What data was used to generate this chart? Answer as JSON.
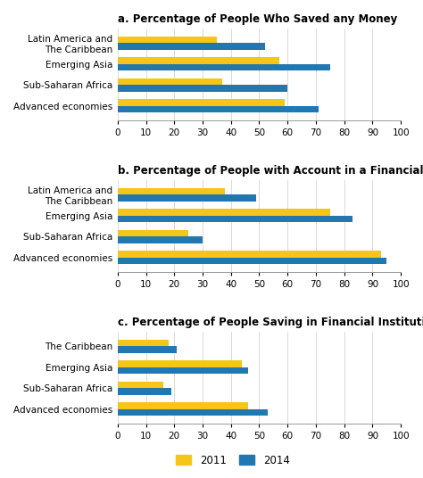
{
  "panel_a": {
    "title": "a. Percentage of People Who Saved any Money",
    "categories": [
      "Advanced economies",
      "Sub-Saharan Africa",
      "Emerging Asia",
      "Latin America and\nThe Caribbean"
    ],
    "values_2011": [
      59,
      37,
      57,
      35
    ],
    "values_2014": [
      71,
      60,
      75,
      52
    ]
  },
  "panel_b": {
    "title": "b. Percentage of People with Account in a Financial Institution",
    "categories": [
      "Advanced economies",
      "Sub-Saharan Africa",
      "Emerging Asia",
      "Latin America and\nThe Caribbean"
    ],
    "values_2011": [
      93,
      25,
      75,
      38
    ],
    "values_2014": [
      95,
      30,
      83,
      49
    ]
  },
  "panel_c": {
    "title": "c. Percentage of People Saving in Financial Institutions",
    "categories": [
      "Advanced economies",
      "Sub-Saharan Africa",
      "Emerging Asia",
      "The Caribbean"
    ],
    "values_2011": [
      46,
      16,
      44,
      18
    ],
    "values_2014": [
      53,
      19,
      46,
      21
    ]
  },
  "color_2011": "#F5C518",
  "color_2014": "#2177B0",
  "xlim": [
    0,
    100
  ],
  "xticks": [
    0,
    10,
    20,
    30,
    40,
    50,
    60,
    70,
    80,
    90,
    100
  ],
  "bar_height": 0.32,
  "label_fontsize": 7.5,
  "title_fontsize": 8.5,
  "tick_fontsize": 7.5
}
